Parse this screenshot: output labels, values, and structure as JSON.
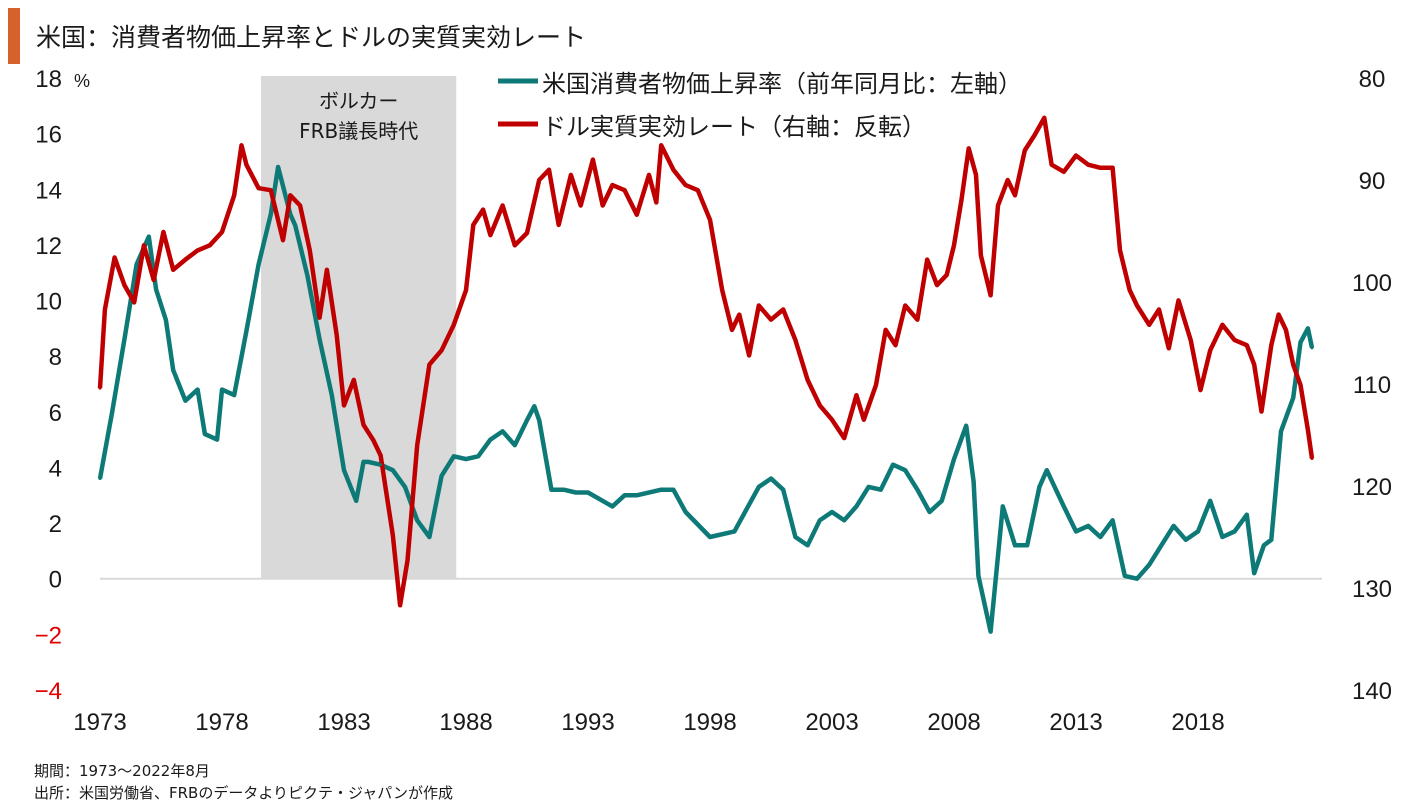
{
  "title": "米国：消費者物価上昇率とドルの実質実効レート",
  "footnotes": {
    "period": "期間：1973～2022年8月",
    "source": "出所：米国労働省、FRBのデータよりピクテ・ジャパンが作成"
  },
  "colors": {
    "accent": "#d4622a",
    "cpi": "#0e7a78",
    "reer": "#c00000",
    "band": "#d9d9d9",
    "negative_tick": "#e00000",
    "zero_line": "#d9d9d9"
  },
  "chart_data": {
    "type": "line",
    "title": "米国：消費者物価上昇率とドルの実質実効レート",
    "xlabel": "",
    "x_ticks": [
      "1973",
      "1978",
      "1983",
      "1988",
      "1993",
      "1998",
      "2003",
      "2008",
      "2013",
      "2018"
    ],
    "x_tick_values": [
      1973,
      1978,
      1983,
      1988,
      1993,
      1998,
      2003,
      2008,
      2013,
      2018
    ],
    "xlim": [
      1973,
      2022.67
    ],
    "left_axis": {
      "unit": "%",
      "ylim": [
        -4,
        18
      ],
      "ticks": [
        "18",
        "16",
        "14",
        "12",
        "10",
        "8",
        "6",
        "4",
        "2",
        "0",
        "−2",
        "−4"
      ],
      "tick_values": [
        18,
        16,
        14,
        12,
        10,
        8,
        6,
        4,
        2,
        0,
        -2,
        -4
      ]
    },
    "right_axis": {
      "ylim": [
        80,
        140
      ],
      "inverted": true,
      "ticks": [
        "80",
        "90",
        "100",
        "110",
        "120",
        "130",
        "140"
      ],
      "tick_values": [
        80,
        90,
        100,
        110,
        120,
        130,
        140
      ]
    },
    "shaded_region": {
      "label_line1": "ボルカー",
      "label_line2": "FRB議長時代",
      "x_start": 1979.6,
      "x_end": 1987.6
    },
    "legend_position": "top-center",
    "series": [
      {
        "name": "米国消費者物価上昇率（前年同月比：左軸）",
        "axis": "left",
        "x": [
          1973.0,
          1973.5,
          1974.0,
          1974.5,
          1975.0,
          1975.3,
          1975.7,
          1976.0,
          1976.5,
          1977.0,
          1977.3,
          1977.8,
          1978.0,
          1978.5,
          1979.0,
          1979.5,
          1980.0,
          1980.3,
          1980.8,
          1981.0,
          1981.5,
          1982.0,
          1982.5,
          1983.0,
          1983.5,
          1983.8,
          1984.0,
          1984.5,
          1985.0,
          1985.5,
          1986.0,
          1986.5,
          1987.0,
          1987.5,
          1988.0,
          1988.5,
          1989.0,
          1989.5,
          1990.0,
          1990.5,
          1990.8,
          1991.0,
          1991.5,
          1992.0,
          1992.5,
          1993.0,
          1994.0,
          1994.5,
          1995.0,
          1996.0,
          1996.5,
          1997.0,
          1998.0,
          1999.0,
          2000.0,
          2000.5,
          2001.0,
          2001.5,
          2002.0,
          2002.5,
          2003.0,
          2003.5,
          2004.0,
          2004.5,
          2005.0,
          2005.5,
          2006.0,
          2006.5,
          2007.0,
          2007.5,
          2008.0,
          2008.5,
          2008.8,
          2009.0,
          2009.5,
          2010.0,
          2010.5,
          2011.0,
          2011.5,
          2011.8,
          2012.5,
          2013.0,
          2013.5,
          2014.0,
          2014.5,
          2015.0,
          2015.5,
          2016.0,
          2016.5,
          2017.0,
          2017.5,
          2018.0,
          2018.5,
          2019.0,
          2019.5,
          2020.0,
          2020.3,
          2020.7,
          2021.0,
          2021.4,
          2021.9,
          2022.2,
          2022.5,
          2022.67
        ],
        "values": [
          3.6,
          6.0,
          8.6,
          11.3,
          12.3,
          10.4,
          9.3,
          7.5,
          6.4,
          6.8,
          5.2,
          5.0,
          6.8,
          6.6,
          8.9,
          11.3,
          13.1,
          14.8,
          13.1,
          12.7,
          10.9,
          8.6,
          6.6,
          3.9,
          2.8,
          4.2,
          4.2,
          4.1,
          3.9,
          3.3,
          2.1,
          1.5,
          3.7,
          4.4,
          4.3,
          4.4,
          5.0,
          5.3,
          4.8,
          5.7,
          6.2,
          5.7,
          3.2,
          3.2,
          3.1,
          3.1,
          2.6,
          3.0,
          3.0,
          3.2,
          3.2,
          2.4,
          1.5,
          1.7,
          3.3,
          3.6,
          3.2,
          1.5,
          1.2,
          2.1,
          2.4,
          2.1,
          2.6,
          3.3,
          3.2,
          4.1,
          3.9,
          3.2,
          2.4,
          2.8,
          4.3,
          5.5,
          3.5,
          0.1,
          -1.9,
          2.6,
          1.2,
          1.2,
          3.3,
          3.9,
          2.6,
          1.7,
          1.9,
          1.5,
          2.1,
          0.1,
          0.0,
          0.5,
          1.2,
          1.9,
          1.4,
          1.7,
          2.8,
          1.5,
          1.7,
          2.3,
          0.2,
          1.2,
          1.4,
          5.3,
          6.5,
          8.5,
          9.0,
          8.3
        ]
      },
      {
        "name": "ドル実質実効レート（右軸：反転）",
        "axis": "right",
        "x": [
          1973.0,
          1973.2,
          1973.6,
          1974.0,
          1974.4,
          1974.8,
          1975.2,
          1975.6,
          1976.0,
          1976.5,
          1977.0,
          1977.5,
          1978.0,
          1978.5,
          1978.8,
          1979.0,
          1979.5,
          1980.0,
          1980.5,
          1980.8,
          1981.2,
          1981.6,
          1982.0,
          1982.3,
          1982.7,
          1983.0,
          1983.4,
          1983.8,
          1984.2,
          1984.5,
          1985.0,
          1985.3,
          1985.6,
          1986.0,
          1986.5,
          1987.0,
          1987.5,
          1988.0,
          1988.3,
          1988.7,
          1989.0,
          1989.5,
          1990.0,
          1990.5,
          1991.0,
          1991.4,
          1991.8,
          1992.3,
          1992.7,
          1993.2,
          1993.6,
          1994.0,
          1994.5,
          1995.0,
          1995.5,
          1995.8,
          1996.0,
          1996.5,
          1997.0,
          1997.5,
          1998.0,
          1998.5,
          1998.9,
          1999.2,
          1999.6,
          2000.0,
          2000.5,
          2001.0,
          2001.5,
          2002.0,
          2002.5,
          2003.0,
          2003.5,
          2004.0,
          2004.3,
          2004.8,
          2005.2,
          2005.6,
          2006.0,
          2006.5,
          2006.9,
          2007.3,
          2007.7,
          2008.0,
          2008.3,
          2008.6,
          2008.9,
          2009.1,
          2009.5,
          2009.8,
          2010.2,
          2010.5,
          2010.9,
          2011.3,
          2011.7,
          2012.0,
          2012.5,
          2013.0,
          2013.5,
          2014.0,
          2014.5,
          2014.8,
          2015.2,
          2015.5,
          2016.0,
          2016.4,
          2016.8,
          2017.2,
          2017.7,
          2018.1,
          2018.5,
          2019.0,
          2019.5,
          2020.0,
          2020.3,
          2020.6,
          2021.0,
          2021.3,
          2021.6,
          2021.9,
          2022.2,
          2022.5,
          2022.67
        ],
        "values": [
          110.4,
          102.7,
          97.6,
          100.3,
          102.0,
          96.4,
          99.8,
          95.1,
          98.8,
          97.8,
          96.9,
          96.4,
          95.1,
          91.5,
          86.6,
          88.5,
          90.8,
          91.0,
          95.9,
          91.5,
          92.5,
          96.9,
          103.5,
          98.8,
          105.2,
          112.1,
          109.6,
          114.0,
          115.5,
          117.0,
          124.8,
          131.7,
          127.3,
          116.0,
          108.1,
          106.7,
          104.2,
          100.8,
          94.4,
          92.9,
          95.4,
          92.5,
          96.4,
          95.2,
          90.0,
          89.0,
          94.4,
          89.5,
          92.5,
          88.0,
          92.5,
          90.5,
          91.0,
          93.4,
          89.5,
          92.2,
          86.6,
          89.0,
          90.5,
          91.0,
          93.9,
          100.8,
          104.7,
          103.2,
          107.2,
          102.3,
          103.7,
          102.7,
          105.7,
          109.6,
          112.1,
          113.5,
          115.3,
          111.1,
          113.5,
          110.1,
          104.7,
          106.2,
          102.3,
          103.7,
          97.8,
          100.3,
          99.3,
          96.4,
          92.0,
          86.9,
          89.5,
          97.4,
          101.3,
          92.5,
          90.0,
          91.5,
          87.1,
          85.6,
          83.9,
          88.5,
          89.2,
          87.6,
          88.5,
          88.8,
          88.8,
          96.9,
          100.8,
          102.3,
          104.2,
          102.7,
          106.5,
          101.8,
          105.7,
          110.6,
          106.7,
          104.2,
          105.7,
          106.2,
          108.1,
          112.7,
          106.2,
          103.2,
          104.7,
          108.1,
          110.1,
          114.5,
          117.3
        ]
      }
    ]
  }
}
